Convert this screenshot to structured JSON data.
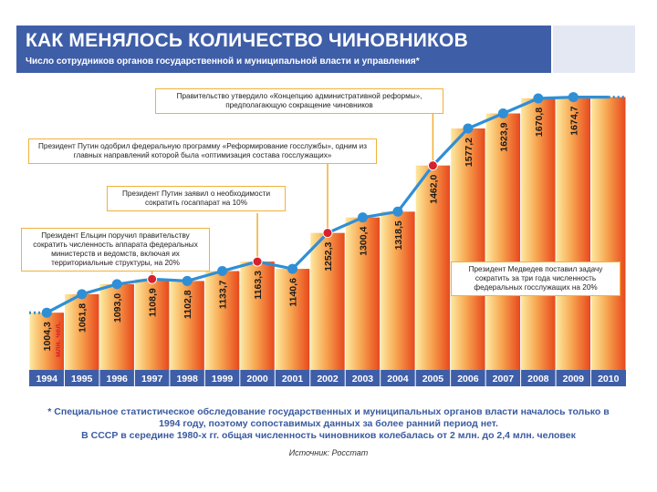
{
  "header": {
    "title": "КАК МЕНЯЛОСЬ КОЛИЧЕСТВО ЧИНОВНИКОВ",
    "subtitle": "Число сотрудников органов государственной и муниципальной власти и управления*"
  },
  "chart_data": {
    "type": "area",
    "categories": [
      "1994",
      "1995",
      "1996",
      "1997",
      "1998",
      "1999",
      "2000",
      "2001",
      "2002",
      "2003",
      "2004",
      "2005",
      "2006",
      "2007",
      "2008",
      "2009",
      "2010"
    ],
    "values": [
      1004.3,
      1061.8,
      1093.0,
      1108.9,
      1102.8,
      1133.7,
      1163.3,
      1140.6,
      1252.3,
      1300.4,
      1318.5,
      1462.0,
      1577.2,
      1623.9,
      1670.8,
      1674.7,
      null
    ],
    "value_labels": [
      "1004,3",
      "1061,8",
      "1093,0",
      "1108,9",
      "1102,8",
      "1133,7",
      "1163,3",
      "1140,6",
      "1252,3",
      "1300,4",
      "1318,5",
      "1462,0",
      "1577,2",
      "1623,9",
      "1670,8",
      "1674,7",
      ""
    ],
    "first_value_unit": "млн. чел.",
    "highlighted_years": [
      "1997",
      "2000",
      "2002",
      "2005"
    ],
    "ylim": [
      900,
      1750
    ],
    "colors": {
      "line": "#2f8fd6",
      "point": "#2f8fd6",
      "highlight_point": "#d9212c",
      "area_light": "#fde9a0",
      "area_dark": "#e8481c",
      "year_bar": "#3f5ea8",
      "connector": "#f1b23a"
    },
    "annotations": [
      {
        "year": "2005",
        "text": "Правительство утвердило «Концепцию административной реформы», предполагающую сокращение чиновников"
      },
      {
        "year": "2002",
        "text": "Президент Путин одобрил федеральную программу «Реформирование госслужбы», одним из главных направлений которой была «оптимизация состава госслужащих»"
      },
      {
        "year": "2000",
        "text": "Президент Путин заявил о необходимости сократить госаппарат на 10%"
      },
      {
        "year": "1997",
        "text": "Президент Ельцин поручил правительству сократить численность аппарата федеральных министерств и ведомств, включая их территориальные структуры, на 20%"
      },
      {
        "year": "2010",
        "text": "Президент Медведев поставил задачу сократить за три года численность федеральных госслужащих на 20%"
      }
    ]
  },
  "footnote": {
    "line1": "* Специальное статистическое обследование государственных и муниципальных органов власти началось только в 1994 году, поэтому сопоставимых данных за более ранний период нет.",
    "line2": "В СССР в середине 1980-х гг. общая численность чиновников колебалась от 2 млн. до 2,4 млн. человек"
  },
  "source": "Источник: Росстат"
}
